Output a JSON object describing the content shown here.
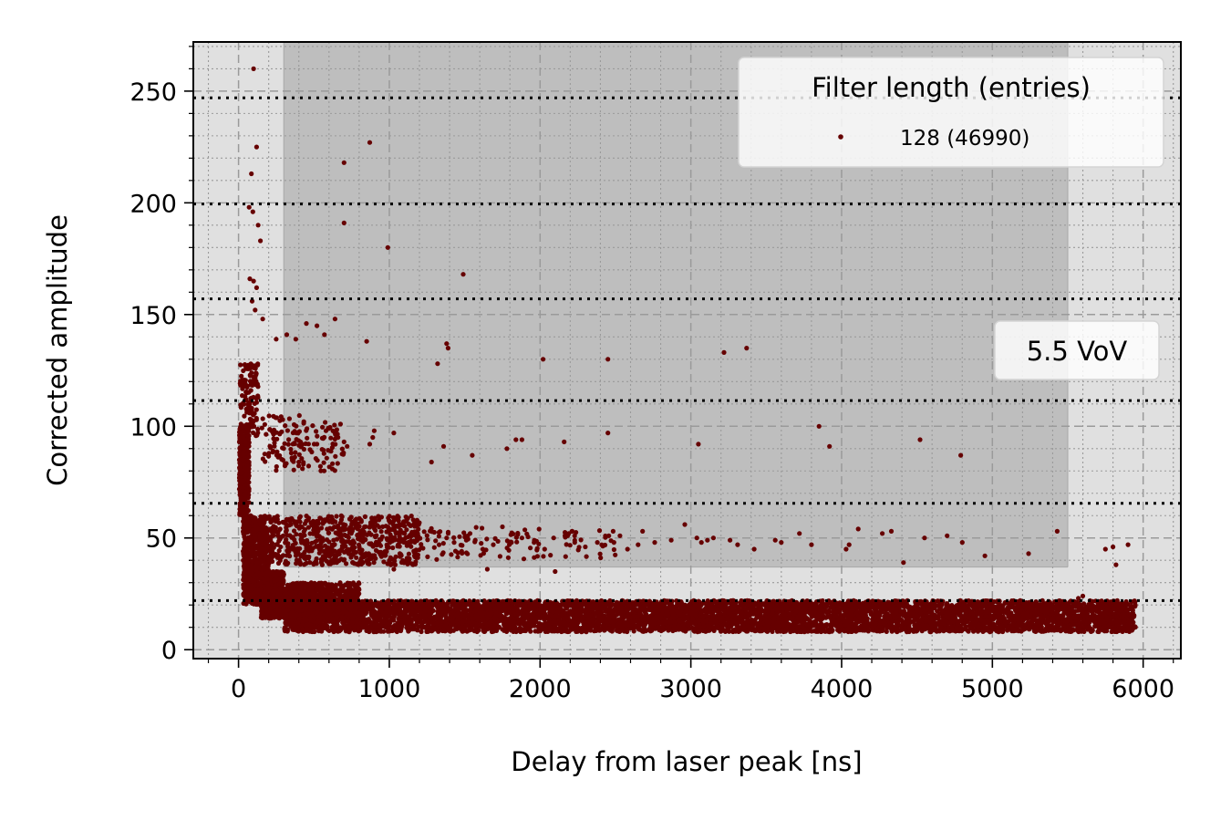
{
  "chart_data": {
    "type": "scatter",
    "title": "",
    "xlabel": "Delay from laser peak [ns]",
    "ylabel": "Corrected amplitude",
    "xlim": [
      -300,
      6250
    ],
    "ylim": [
      -4,
      272
    ],
    "x_ticks": [
      0,
      1000,
      2000,
      3000,
      4000,
      5000,
      6000
    ],
    "y_ticks": [
      0,
      50,
      100,
      150,
      200,
      250
    ],
    "grid": true,
    "legend": {
      "title": "Filter length (entries)",
      "position": "top-right",
      "entries": [
        {
          "label": "128 (46990)",
          "color": "#660000"
        }
      ]
    },
    "annotation": "5.5 VoV",
    "highlight_regions": [
      {
        "x_range": [
          -300,
          6250
        ],
        "y_range": [
          -4,
          272
        ],
        "color": "#e0e0e0"
      },
      {
        "x_range": [
          300,
          5500
        ],
        "y_range": [
          37,
          272
        ],
        "color": "#bebebe"
      }
    ],
    "threshold_lines_y": [
      22,
      65.5,
      111.5,
      157,
      199.5,
      247
    ],
    "series": [
      {
        "name": "128 (46990)",
        "color": "#660000",
        "bands": [
          {
            "x_range": [
              300,
              5950
            ],
            "y_range": [
              8,
              22
            ],
            "count": 6500
          },
          {
            "x_range": [
              150,
              300
            ],
            "y_range": [
              14,
              35
            ],
            "count": 900
          },
          {
            "x_range": [
              300,
              800
            ],
            "y_range": [
              14,
              30
            ],
            "count": 800
          },
          {
            "x_range": [
              30,
              200
            ],
            "y_range": [
              20,
              60
            ],
            "count": 700
          },
          {
            "x_range": [
              5,
              70
            ],
            "y_range": [
              60,
              100
            ],
            "count": 350
          },
          {
            "x_range": [
              10,
              130
            ],
            "y_range": [
              95,
              128
            ],
            "count": 120
          },
          {
            "x_range": [
              200,
              1200
            ],
            "y_range": [
              38,
              60
            ],
            "count": 650
          },
          {
            "x_range": [
              1200,
              2500
            ],
            "y_range": [
              40,
              55
            ],
            "count": 110
          },
          {
            "x_range": [
              150,
              700
            ],
            "y_range": [
              80,
              105
            ],
            "count": 140
          }
        ],
        "outliers": [
          [
            100,
            260
          ],
          [
            120,
            225
          ],
          [
            85,
            213
          ],
          [
            70,
            198
          ],
          [
            95,
            196
          ],
          [
            130,
            190
          ],
          [
            145,
            183
          ],
          [
            75,
            166
          ],
          [
            100,
            165
          ],
          [
            120,
            162
          ],
          [
            90,
            156
          ],
          [
            110,
            152
          ],
          [
            160,
            148
          ],
          [
            870,
            227
          ],
          [
            700,
            218
          ],
          [
            700,
            191
          ],
          [
            990,
            180
          ],
          [
            1490,
            168
          ],
          [
            640,
            148
          ],
          [
            450,
            146
          ],
          [
            520,
            145
          ],
          [
            570,
            141
          ],
          [
            250,
            139
          ],
          [
            320,
            141
          ],
          [
            380,
            139
          ],
          [
            850,
            138
          ],
          [
            1380,
            137
          ],
          [
            1390,
            135
          ],
          [
            1320,
            128
          ],
          [
            2020,
            130
          ],
          [
            2450,
            130
          ],
          [
            3220,
            133
          ],
          [
            3370,
            135
          ],
          [
            3850,
            100
          ],
          [
            3920,
            91
          ],
          [
            4520,
            94
          ],
          [
            4790,
            87
          ],
          [
            3050,
            92
          ],
          [
            2450,
            97
          ],
          [
            2160,
            93
          ],
          [
            1780,
            90
          ],
          [
            1840,
            94
          ],
          [
            1880,
            94
          ],
          [
            1550,
            87
          ],
          [
            1360,
            91
          ],
          [
            1280,
            84
          ],
          [
            1030,
            97
          ],
          [
            870,
            92
          ],
          [
            890,
            95
          ],
          [
            900,
            98
          ],
          [
            660,
            95
          ],
          [
            700,
            93
          ],
          [
            720,
            91
          ],
          [
            580,
            98
          ],
          [
            600,
            99
          ],
          [
            520,
            92
          ],
          [
            400,
            84
          ],
          [
            430,
            83
          ],
          [
            350,
            88
          ],
          [
            5430,
            53
          ],
          [
            5800,
            46
          ],
          [
            5820,
            38
          ],
          [
            5900,
            47
          ],
          [
            5750,
            45
          ],
          [
            4950,
            42
          ],
          [
            5240,
            43
          ],
          [
            4800,
            48
          ],
          [
            4700,
            51
          ],
          [
            4550,
            50
          ],
          [
            4410,
            39
          ],
          [
            4330,
            53
          ],
          [
            4270,
            52
          ],
          [
            4110,
            54
          ],
          [
            4030,
            45
          ],
          [
            4050,
            47
          ],
          [
            3800,
            47
          ],
          [
            3720,
            52
          ],
          [
            3600,
            48
          ],
          [
            3560,
            49
          ],
          [
            3420,
            45
          ],
          [
            3310,
            47
          ],
          [
            3260,
            49
          ],
          [
            3150,
            50
          ],
          [
            3110,
            49
          ],
          [
            3070,
            48
          ],
          [
            3040,
            50
          ],
          [
            2960,
            56
          ],
          [
            2870,
            49
          ],
          [
            2760,
            48
          ],
          [
            2680,
            53
          ],
          [
            2650,
            47
          ],
          [
            2580,
            45
          ],
          [
            2530,
            51
          ],
          [
            2490,
            48
          ],
          [
            2380,
            48
          ],
          [
            2300,
            46
          ],
          [
            2230,
            48
          ],
          [
            2190,
            52
          ],
          [
            2090,
            50
          ],
          [
            2030,
            45
          ],
          [
            1960,
            48
          ],
          [
            1880,
            50
          ],
          [
            1810,
            48
          ],
          [
            1750,
            55
          ],
          [
            1690,
            47
          ],
          [
            1650,
            36
          ],
          [
            1620,
            45
          ],
          [
            1570,
            49
          ],
          [
            1520,
            51
          ],
          [
            1480,
            44
          ],
          [
            1430,
            48
          ],
          [
            1380,
            50
          ],
          [
            1330,
            47
          ],
          [
            2100,
            35
          ],
          [
            1030,
            36
          ],
          [
            1010,
            38
          ],
          [
            5570,
            23
          ],
          [
            5600,
            24
          ]
        ]
      }
    ]
  }
}
